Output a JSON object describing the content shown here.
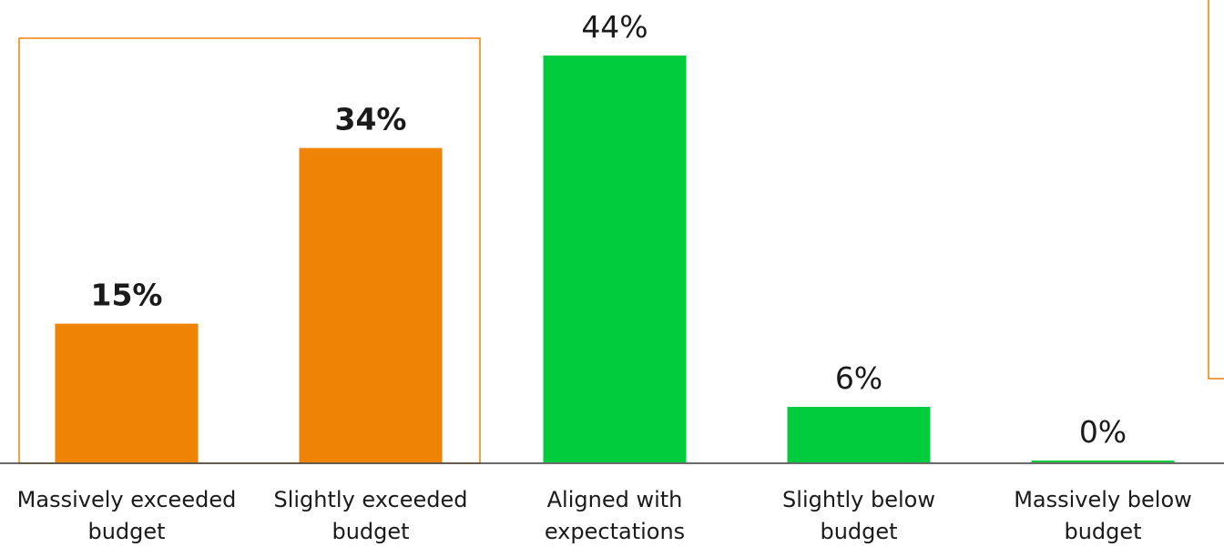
{
  "chart_data": {
    "type": "bar",
    "categories": [
      [
        "Massively exceeded",
        "budget"
      ],
      [
        "Slightly exceeded",
        "budget"
      ],
      [
        "Aligned with",
        "expectations"
      ],
      [
        "Slightly below",
        "budget"
      ],
      [
        "Massively below",
        "budget"
      ]
    ],
    "values": [
      15,
      34,
      44,
      6,
      0
    ],
    "value_labels": [
      "15%",
      "34%",
      "44%",
      "6%",
      "0%"
    ],
    "bold_labels": [
      true,
      true,
      false,
      false,
      false
    ],
    "bar_colors": [
      "#EE8305",
      "#EE8305",
      "#00CC3E",
      "#00CC3E",
      "#00CC3E"
    ],
    "highlight_box_color": "#EE8305",
    "highlighted_categories": [
      0,
      1
    ],
    "ylim": [
      0,
      44
    ],
    "grid": false,
    "legend": "none"
  }
}
